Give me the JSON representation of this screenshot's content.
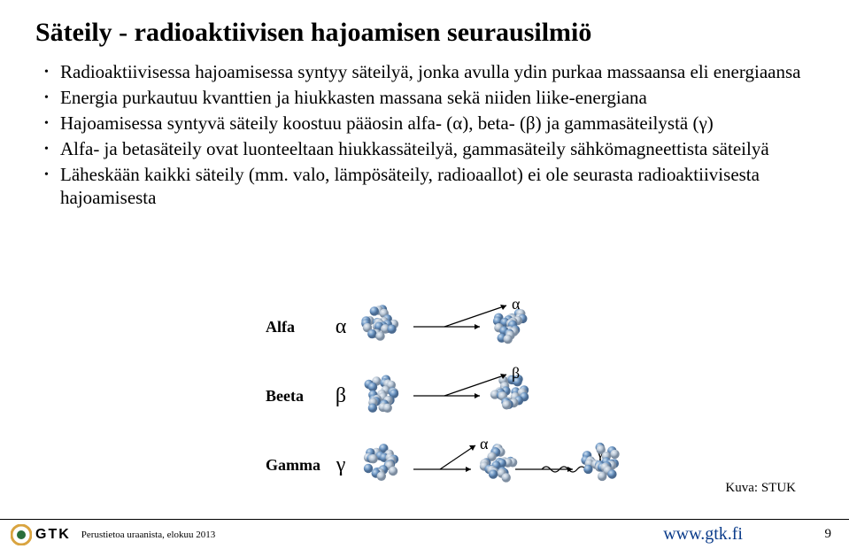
{
  "title": "Säteily - radioaktiivisen hajoamisen seurausilmiö",
  "bullets": [
    "Radioaktiivisessa hajoamisessa syntyy säteilyä, jonka avulla ydin purkaa massaansa eli energiaansa",
    "Energia purkautuu kvanttien ja hiukkasten massana sekä niiden liike-energiana",
    "Hajoamisessa syntyvä säteily koostuu pääosin alfa- (α), beta- (β) ja gammasäteilystä (γ)",
    "Alfa- ja betasäteily ovat luonteeltaan hiukkassäteilyä, gammasäteily sähkömagneettista säteilyä",
    "Läheskään kaikki säteily (mm. valo, lämpösäteily, radioaallot) ei ole seurasta radioaktiivisesta hajoamisesta"
  ],
  "diagram": {
    "rows": [
      {
        "label": "Alfa",
        "symbol": "α",
        "emit": "α",
        "emit2": ""
      },
      {
        "label": "Beeta",
        "symbol": "β",
        "emit": "β",
        "emit2": ""
      },
      {
        "label": "Gamma",
        "symbol": "γ",
        "emit": "α",
        "emit2": "γ"
      }
    ],
    "nucleon_colors": {
      "p": "#6f98c5",
      "n": "#b9c7d6",
      "shadow": "#4a6a90"
    },
    "arrow_color": "#000000"
  },
  "caption": "Kuva: STUK",
  "footer": {
    "left": "Perustietoa uraanista, elokuu 2013",
    "url": "www.gtk.fi",
    "page": "9",
    "logo_text": "GTK",
    "logo_colors": {
      "ring": "#d9a440",
      "center": "#2a6e3a"
    }
  }
}
